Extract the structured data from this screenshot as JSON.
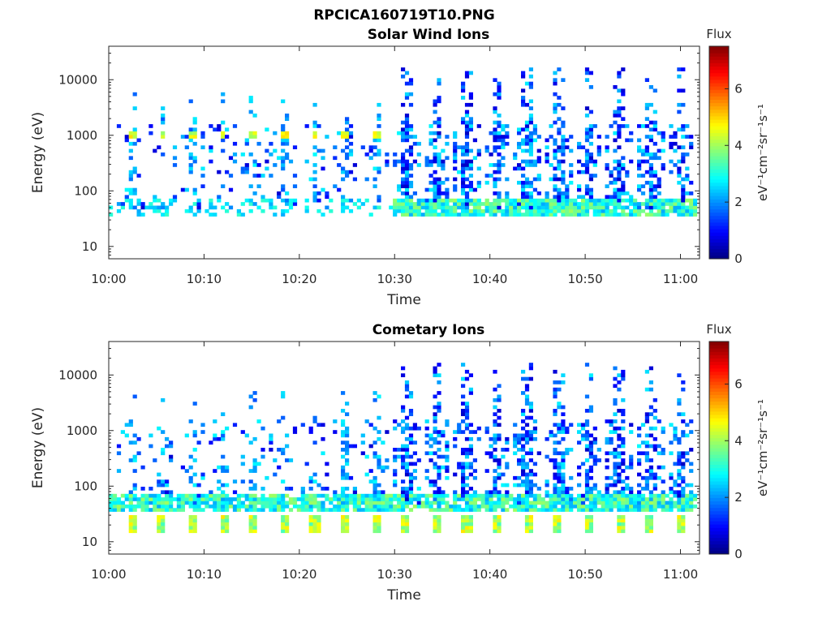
{
  "figure_title": "RPCICA160719T10.PNG",
  "chart_data": [
    {
      "type": "heatmap",
      "title": "Solar Wind Ions",
      "xlabel": "Time",
      "ylabel": "Energy (eV)",
      "yscale": "log",
      "xlim": [
        "10:00",
        "11:02"
      ],
      "ylim": [
        6,
        40000
      ],
      "x_ticks": [
        "10:00",
        "10:10",
        "10:20",
        "10:30",
        "10:40",
        "10:50",
        "11:00"
      ],
      "y_ticks": [
        "10",
        "100",
        "1000",
        "10000"
      ],
      "colorbar": {
        "title": "Flux",
        "label": "eV⁻¹cm⁻²sr⁻¹s⁻¹",
        "range": [
          0,
          7.5
        ],
        "ticks": [
          "0",
          "2",
          "4",
          "6"
        ],
        "colormap": "jet"
      },
      "sweep_times_min": [
        2.2,
        5.4,
        8.6,
        11.8,
        15.0,
        18.2,
        21.4,
        24.6,
        27.8,
        31.0,
        34.2,
        37.4,
        40.6,
        43.8,
        47.0,
        50.2,
        53.4,
        56.6,
        59.8
      ],
      "dominant_energy_eV": 1000,
      "dominant_flux": 4.5,
      "note_bands": [
        {
          "energy_eV": 45,
          "flux": 3.5,
          "from_min": 30,
          "to_min": 62
        }
      ]
    },
    {
      "type": "heatmap",
      "title": "Cometary Ions",
      "xlabel": "Time",
      "ylabel": "Energy (eV)",
      "yscale": "log",
      "xlim": [
        "10:00",
        "11:02"
      ],
      "ylim": [
        6,
        40000
      ],
      "x_ticks": [
        "10:00",
        "10:10",
        "10:20",
        "10:30",
        "10:40",
        "10:50",
        "11:00"
      ],
      "y_ticks": [
        "10",
        "100",
        "1000",
        "10000"
      ],
      "colorbar": {
        "title": "Flux",
        "label": "eV⁻¹cm⁻²sr⁻¹s⁻¹",
        "range": [
          0,
          7.5
        ],
        "ticks": [
          "0",
          "2",
          "4",
          "6"
        ],
        "colormap": "jet"
      },
      "sweep_times_min": [
        2.2,
        5.4,
        8.6,
        11.8,
        15.0,
        18.2,
        21.4,
        24.6,
        27.8,
        31.0,
        34.2,
        37.4,
        40.6,
        43.8,
        47.0,
        50.2,
        53.4,
        56.6,
        59.8
      ],
      "low_energy_patch_eV": 20,
      "low_energy_patch_flux": 4.2,
      "note_bands": [
        {
          "energy_eV": 50,
          "flux": 3.2,
          "from_min": 0,
          "to_min": 62
        }
      ]
    }
  ]
}
